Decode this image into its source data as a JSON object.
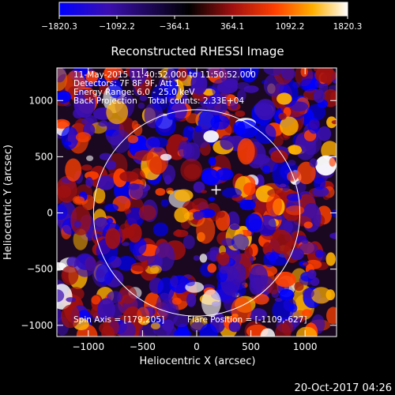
{
  "chart_data": {
    "type": "heatmap",
    "title": "Reconstructed RHESSI Image",
    "xlabel": "Heliocentric X (arcsec)",
    "ylabel": "Heliocentric Y (arcsec)",
    "xlim": [
      -1290,
      1290
    ],
    "ylim": [
      -1100,
      1290
    ],
    "xticks": [
      -1000,
      -500,
      0,
      500,
      1000
    ],
    "xtick_labels": [
      "−1000",
      "−500",
      "0",
      "500",
      "1000"
    ],
    "yticks": [
      -1000,
      -500,
      0,
      500,
      1000
    ],
    "ytick_labels": [
      "−1000",
      "−500",
      "0",
      "500",
      "1000"
    ],
    "colorbar": {
      "min": -1820.3,
      "max": 1820.3,
      "ticks": [
        -1820.3,
        -1092.2,
        -364.1,
        364.1,
        1092.2,
        1820.3
      ],
      "tick_labels": [
        "−1820.3",
        "−1092.2",
        "−364.1",
        "364.1",
        "1092.2",
        "1820.3"
      ],
      "colormap": [
        "#0000ff",
        "#3b0fb0",
        "#000000",
        "#a01010",
        "#ff4000",
        "#ffb000",
        "#ffffff"
      ]
    },
    "info_lines": [
      "11-May-2015 11:40:52.000 to 11:50:52.000",
      "Detectors: 7F 8F 9F, Att 1",
      "Energy Range: 6.0 - 25.0 keV",
      "Back Projection    Total counts: 2.33E+04"
    ],
    "solar_limb": {
      "center": [
        0,
        0
      ],
      "radius": 952
    },
    "flare_marker": {
      "x": 179,
      "y": 205
    },
    "spin_axis_label": "Spin Axis = [179,205]",
    "flare_position_label": "Flare Position = [-1109,-627]"
  },
  "footer": {
    "timestamp": "20-Oct-2017 04:26"
  }
}
